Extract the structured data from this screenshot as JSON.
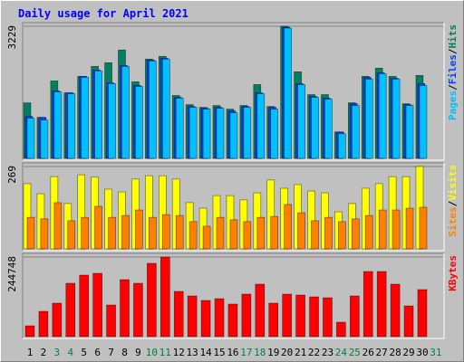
{
  "chart_data": [
    {
      "type": "bar",
      "title": "Daily usage for April 2021",
      "categories": [
        "1",
        "2",
        "3",
        "4",
        "5",
        "6",
        "7",
        "8",
        "9",
        "10",
        "11",
        "12",
        "13",
        "14",
        "15",
        "16",
        "17",
        "18",
        "19",
        "20",
        "21",
        "22",
        "23",
        "24",
        "25",
        "26",
        "27",
        "28",
        "29",
        "30",
        "31"
      ],
      "category_colors": [
        "#000000",
        "#000000",
        "#008040",
        "#008040",
        "#000000",
        "#000000",
        "#000000",
        "#000000",
        "#000000",
        "#008040",
        "#008040",
        "#000000",
        "#000000",
        "#000000",
        "#000000",
        "#000000",
        "#008040",
        "#008040",
        "#000000",
        "#000000",
        "#000000",
        "#000000",
        "#000000",
        "#008040",
        "#008040",
        "#000000",
        "#000000",
        "#000000",
        "#000000",
        "#000000",
        "#008040"
      ],
      "legend_separator": "/",
      "ylim": [
        0,
        3229
      ],
      "yticks": [
        3229
      ],
      "series": [
        {
          "name": "Pages",
          "color": "#00c0ff",
          "values": [
            980,
            935,
            1626,
            1581,
            1982,
            2138,
            1826,
            2249,
            1760,
            2383,
            2427,
            1470,
            1247,
            1203,
            1225,
            1114,
            1247,
            1581,
            1203,
            3184,
            1804,
            1492,
            1448,
            601,
            1292,
            1938,
            2071,
            1938,
            1292,
            1782,
            null
          ]
        },
        {
          "name": "Files",
          "color": "#0040ff",
          "values": [
            1024,
            1002,
            1648,
            1603,
            2004,
            2160,
            1848,
            2271,
            1782,
            2405,
            2449,
            1492,
            1269,
            1225,
            1247,
            1158,
            1269,
            1603,
            1247,
            3207,
            1826,
            1514,
            1470,
            646,
            1336,
            1982,
            2093,
            1960,
            1314,
            1826,
            null
          ]
        },
        {
          "name": "Hits",
          "color": "#008060",
          "values": [
            1358,
            1002,
            1893,
            1603,
            2004,
            2249,
            2338,
            2650,
            1871,
            2427,
            2494,
            1537,
            1314,
            1247,
            1292,
            1203,
            1292,
            1804,
            1269,
            3229,
            2116,
            1559,
            1559,
            646,
            1358,
            2004,
            2205,
            2004,
            1336,
            2027,
            null
          ]
        }
      ]
    },
    {
      "type": "bar",
      "ylim": [
        0,
        269
      ],
      "yticks": [
        269
      ],
      "series": [
        {
          "name": "Sites",
          "color": "#ff8000",
          "values": [
            103,
            98,
            151,
            92,
            103,
            139,
            103,
            109,
            127,
            103,
            112,
            109,
            89,
            74,
            103,
            95,
            89,
            103,
            106,
            145,
            118,
            92,
            103,
            89,
            98,
            109,
            127,
            127,
            133,
            136,
            null
          ]
        },
        {
          "name": "Visits",
          "color": "#ffff00",
          "values": [
            213,
            180,
            236,
            148,
            242,
            234,
            195,
            186,
            228,
            239,
            239,
            228,
            151,
            133,
            174,
            174,
            160,
            183,
            225,
            198,
            210,
            189,
            183,
            121,
            148,
            198,
            213,
            236,
            236,
            269,
            null
          ]
        }
      ]
    },
    {
      "type": "bar",
      "ylim": [
        0,
        244748
      ],
      "yticks": [
        244748
      ],
      "series": [
        {
          "name": "KBytes",
          "color": "#ff0000",
          "values": [
            33374,
            77870,
            102900,
            164080,
            189110,
            194670,
            97336,
            175200,
            164080,
            225260,
            244748,
            139050,
            125150,
            111240,
            116800,
            100120,
            130710,
            161300,
            102900,
            130710,
            127930,
            122360,
            119580,
            44496,
            125150,
            200230,
            200230,
            161300,
            94554,
            144610,
            null
          ]
        }
      ]
    }
  ]
}
